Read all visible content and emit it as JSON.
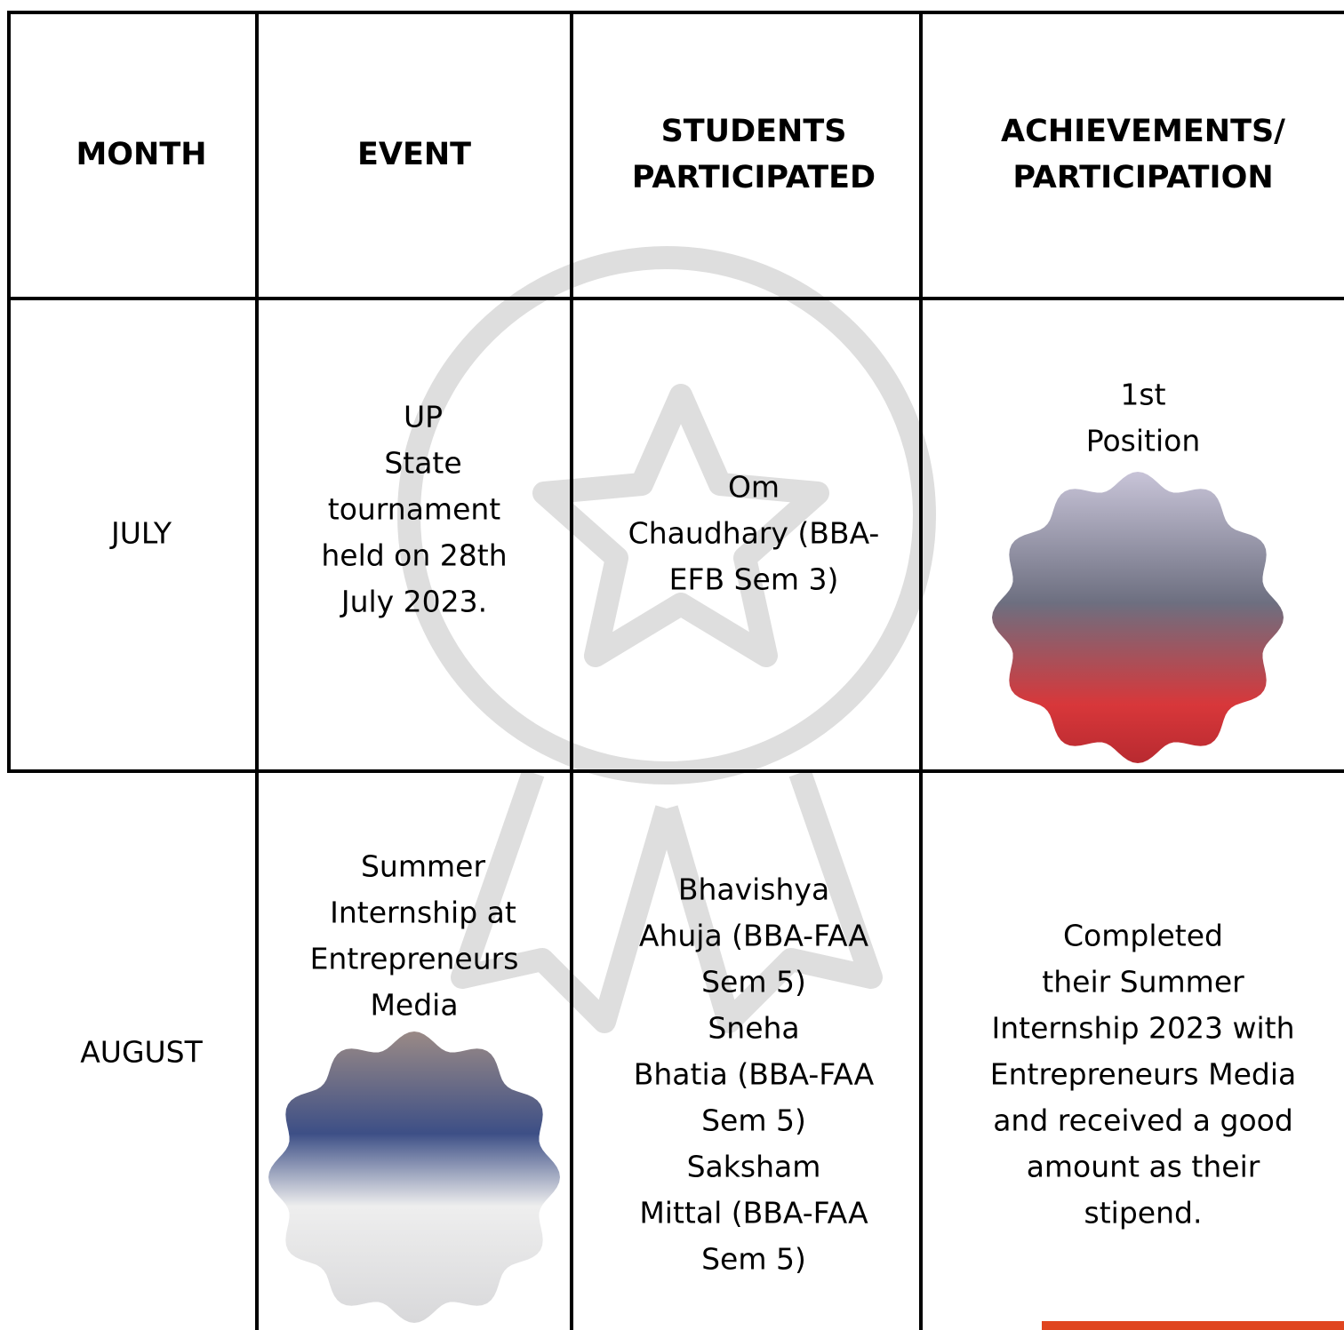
{
  "table": {
    "header": [
      [
        "MONTH"
      ],
      [
        "EVENT"
      ],
      [
        "STUDENTS",
        "PARTICIPATED"
      ],
      [
        "ACHIEVEMENTS/",
        "PARTICIPATION"
      ]
    ],
    "rows": [
      [
        [
          "JULY"
        ],
        [
          "UP",
          "State",
          "tournament",
          "held on 28th",
          "July 2023."
        ],
        [
          "Om",
          "Chaudhary (BBA-",
          "EFB Sem 3)"
        ],
        [
          "1st",
          "Position"
        ]
      ],
      [
        [
          "AUGUST"
        ],
        [
          "Summer",
          "Internship at",
          "Entrepreneurs",
          "Media"
        ],
        [
          "Bhavishya",
          "Ahuja (BBA-FAA",
          "Sem 5)",
          "Sneha",
          "Bhatia (BBA-FAA",
          "Sem 5)",
          "Saksham",
          "Mittal (BBA-FAA",
          "Sem 5)"
        ],
        [
          "Completed",
          "their Summer",
          "Internship 2023 with",
          "Entrepreneurs Media",
          "and received a good",
          "amount as their",
          "stipend."
        ]
      ]
    ]
  }
}
